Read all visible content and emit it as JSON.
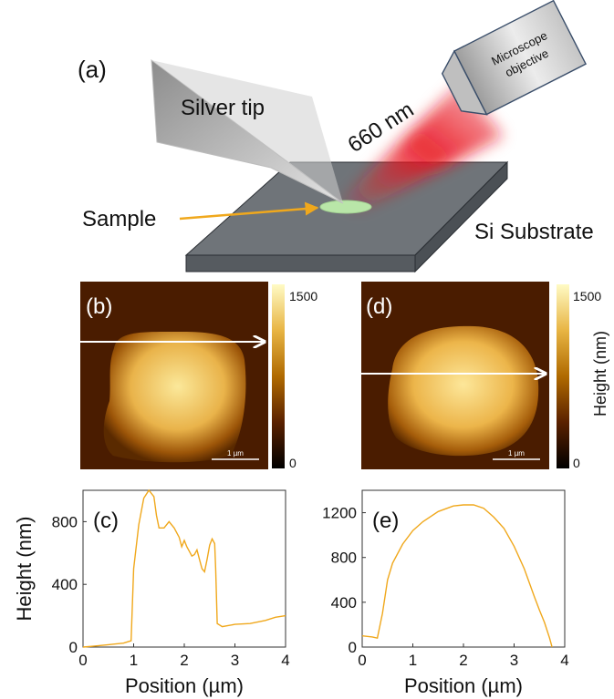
{
  "panel_a": {
    "label": "(a)",
    "tip_label": "Silver tip",
    "laser_label": "660 nm",
    "objective_label_line1": "Microscope",
    "objective_label_line2": "objective",
    "sample_label": "Sample",
    "substrate_label": "Si Substrate",
    "colors": {
      "laser": "#e8141e",
      "arrow": "#f0a81c",
      "substrate_top": "#6f7479",
      "sample": "#b9e6a8"
    }
  },
  "panel_b": {
    "label": "(b)",
    "colorbar_max": "1500",
    "colorbar_min": "0",
    "scalebar": "1 µm"
  },
  "panel_d": {
    "label": "(d)",
    "colorbar_max": "1500",
    "colorbar_min": "0",
    "scalebar": "1 µm",
    "colorbar_title": "Height (nm)"
  },
  "chart_data": [
    {
      "panel": "(c)",
      "type": "line",
      "xlabel": "Position (µm)",
      "ylabel": "Height (nm)",
      "xlim": [
        0,
        4
      ],
      "ylim": [
        0,
        1000
      ],
      "xticks": [
        "0",
        "1",
        "2",
        "3",
        "4"
      ],
      "yticks": [
        "0",
        "400",
        "800"
      ],
      "ytick_values": [
        0,
        400,
        800
      ],
      "color": "#f0a81c",
      "x": [
        0,
        0.2,
        0.5,
        0.8,
        0.95,
        1.0,
        1.1,
        1.2,
        1.3,
        1.4,
        1.45,
        1.5,
        1.6,
        1.7,
        1.8,
        1.9,
        1.95,
        2.0,
        2.05,
        2.1,
        2.15,
        2.2,
        2.25,
        2.3,
        2.35,
        2.4,
        2.45,
        2.5,
        2.55,
        2.6,
        2.62,
        2.65,
        2.75,
        3.0,
        3.3,
        3.6,
        3.8,
        4.0
      ],
      "y": [
        0,
        5,
        15,
        25,
        40,
        500,
        780,
        950,
        1000,
        960,
        840,
        760,
        760,
        800,
        760,
        700,
        640,
        680,
        640,
        610,
        580,
        590,
        620,
        560,
        500,
        480,
        560,
        650,
        690,
        660,
        500,
        150,
        130,
        145,
        150,
        170,
        190,
        200
      ]
    },
    {
      "panel": "(e)",
      "type": "line",
      "xlabel": "Position (µm)",
      "ylabel": "",
      "xlim": [
        0,
        4
      ],
      "ylim": [
        0,
        1400
      ],
      "xticks": [
        "0",
        "1",
        "2",
        "3",
        "4"
      ],
      "yticks": [
        "0",
        "400",
        "800",
        "1200"
      ],
      "ytick_values": [
        0,
        400,
        800,
        1200
      ],
      "color": "#f0a81c",
      "x": [
        0,
        0.2,
        0.3,
        0.4,
        0.5,
        0.6,
        0.8,
        1.0,
        1.2,
        1.5,
        1.8,
        2.0,
        2.2,
        2.4,
        2.6,
        2.8,
        3.0,
        3.2,
        3.4,
        3.5,
        3.6,
        3.7,
        3.75
      ],
      "y": [
        100,
        90,
        80,
        300,
        600,
        750,
        920,
        1040,
        1120,
        1210,
        1260,
        1270,
        1270,
        1240,
        1160,
        1060,
        900,
        700,
        450,
        330,
        220,
        80,
        0
      ]
    }
  ]
}
